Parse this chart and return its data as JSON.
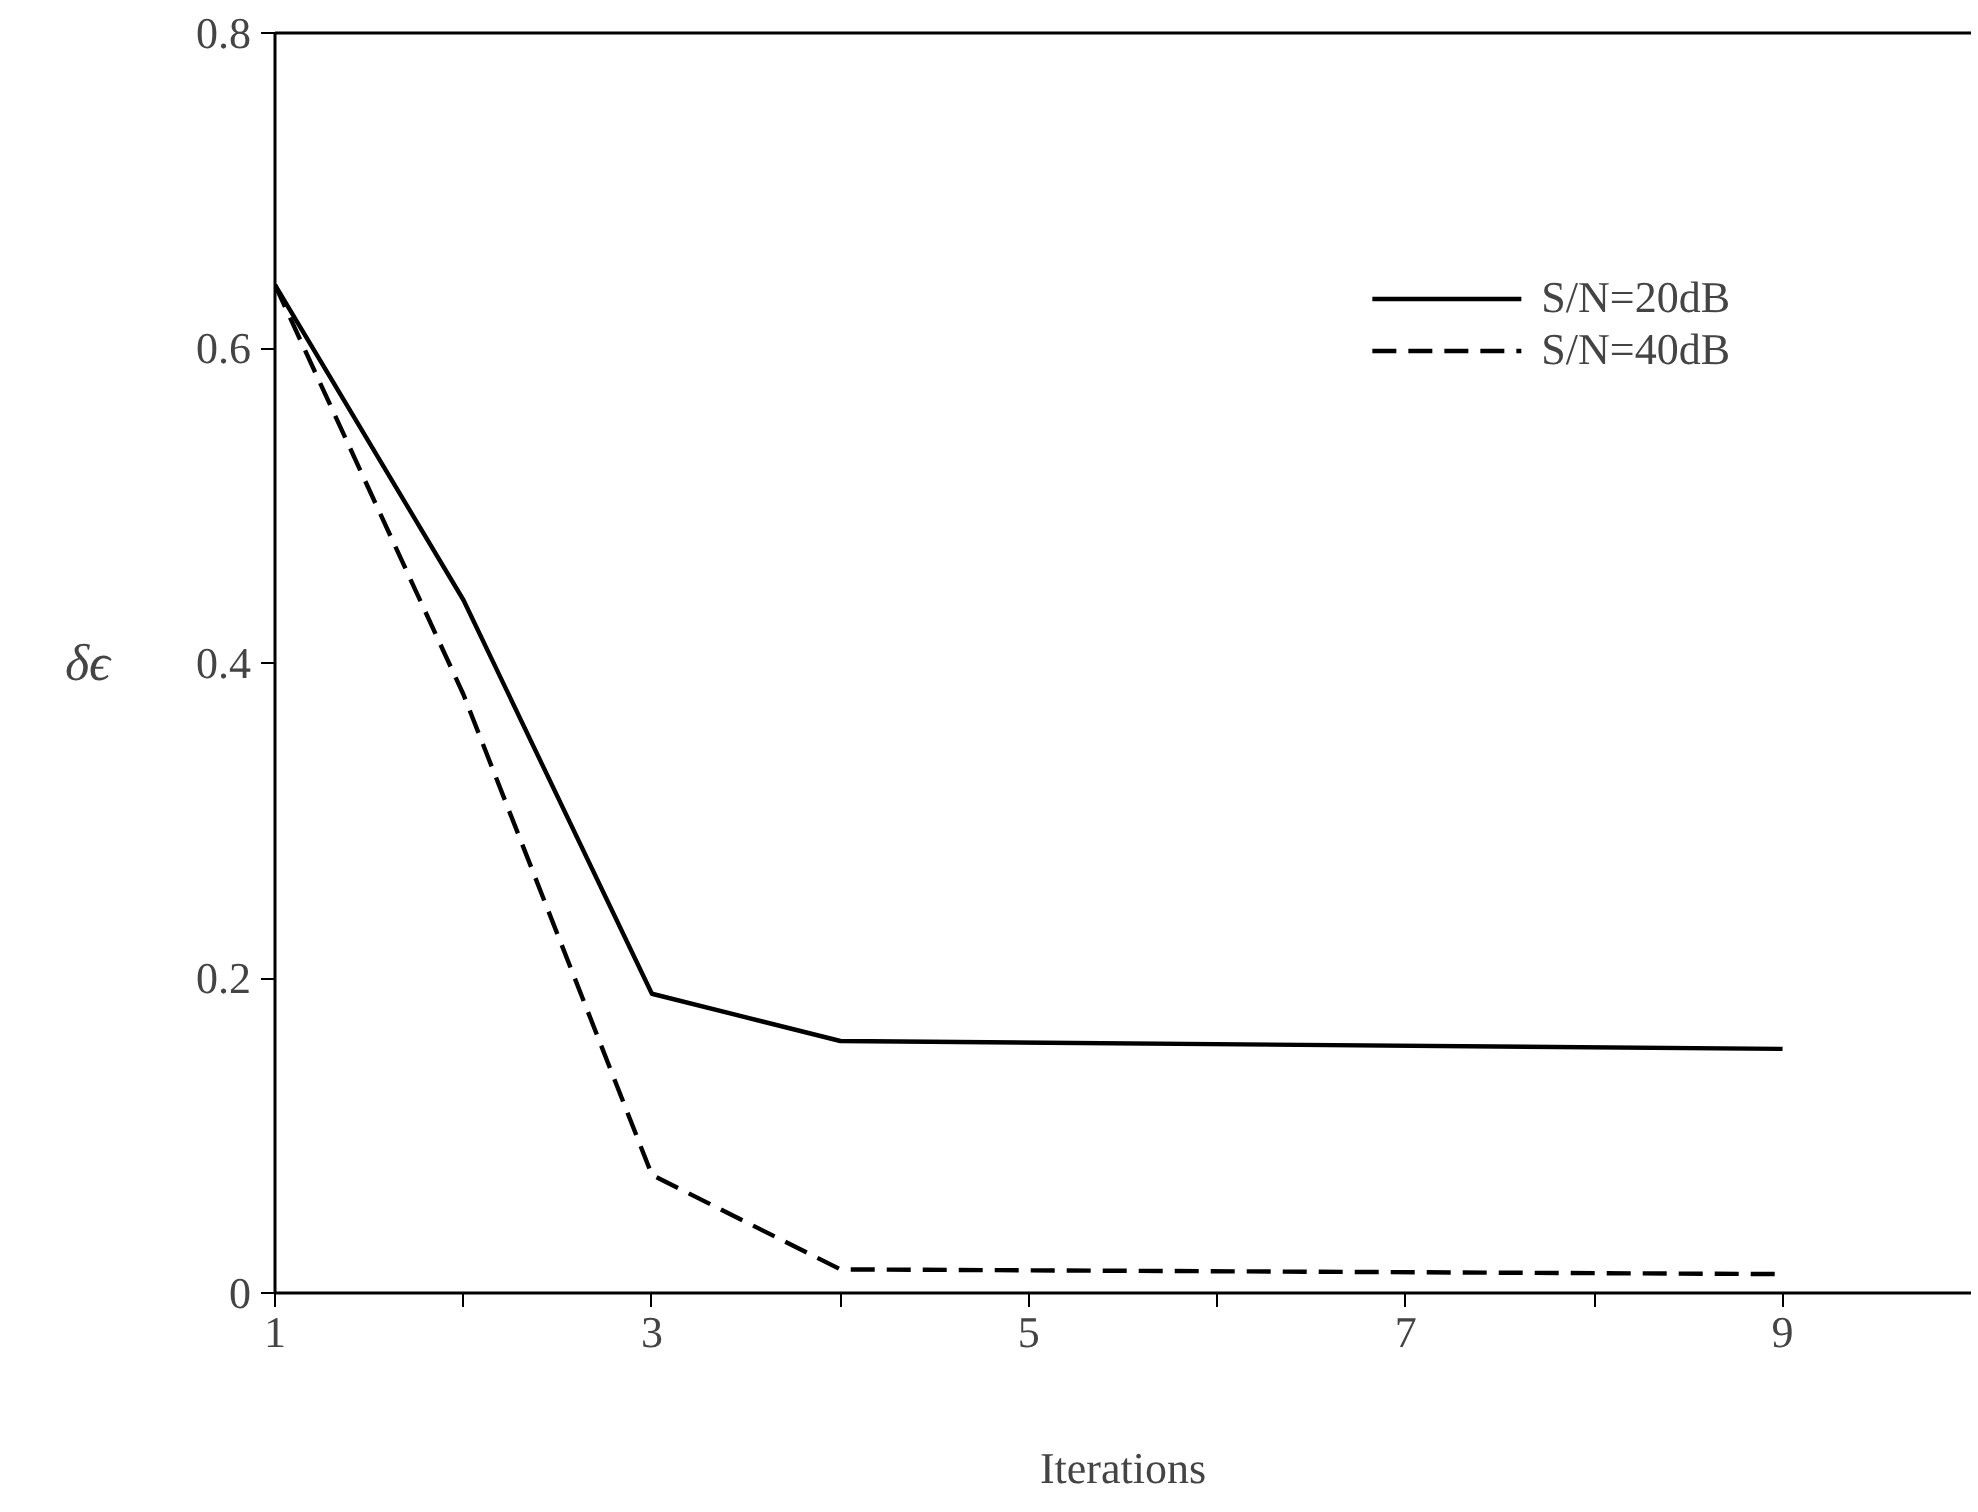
{
  "chart_data": {
    "type": "line",
    "xlabel": "Iterations",
    "ylabel": "δϵ",
    "x": [
      1,
      2,
      3,
      4,
      9
    ],
    "series": [
      {
        "name": "S/N=20dB",
        "color": "#000000",
        "line_style": "solid",
        "values": [
          0.64,
          0.44,
          0.19,
          0.16,
          0.155
        ]
      },
      {
        "name": "S/N=40dB",
        "color": "#000000",
        "line_style": "dashed",
        "values": [
          0.64,
          0.38,
          0.075,
          0.015,
          0.012
        ]
      }
    ],
    "xlim": [
      1,
      10
    ],
    "ylim": [
      0,
      0.8
    ],
    "xticks": [
      1,
      {
        "value": 2,
        "label": null
      },
      3,
      {
        "value": 4,
        "label": null
      },
      5,
      {
        "value": 6,
        "label": null
      },
      7,
      {
        "value": 8,
        "label": null
      },
      9
    ],
    "yticks": [
      0,
      0.2,
      0.4,
      0.6,
      0.8
    ],
    "grid": false,
    "legend": "top right",
    "marker": "none"
  }
}
